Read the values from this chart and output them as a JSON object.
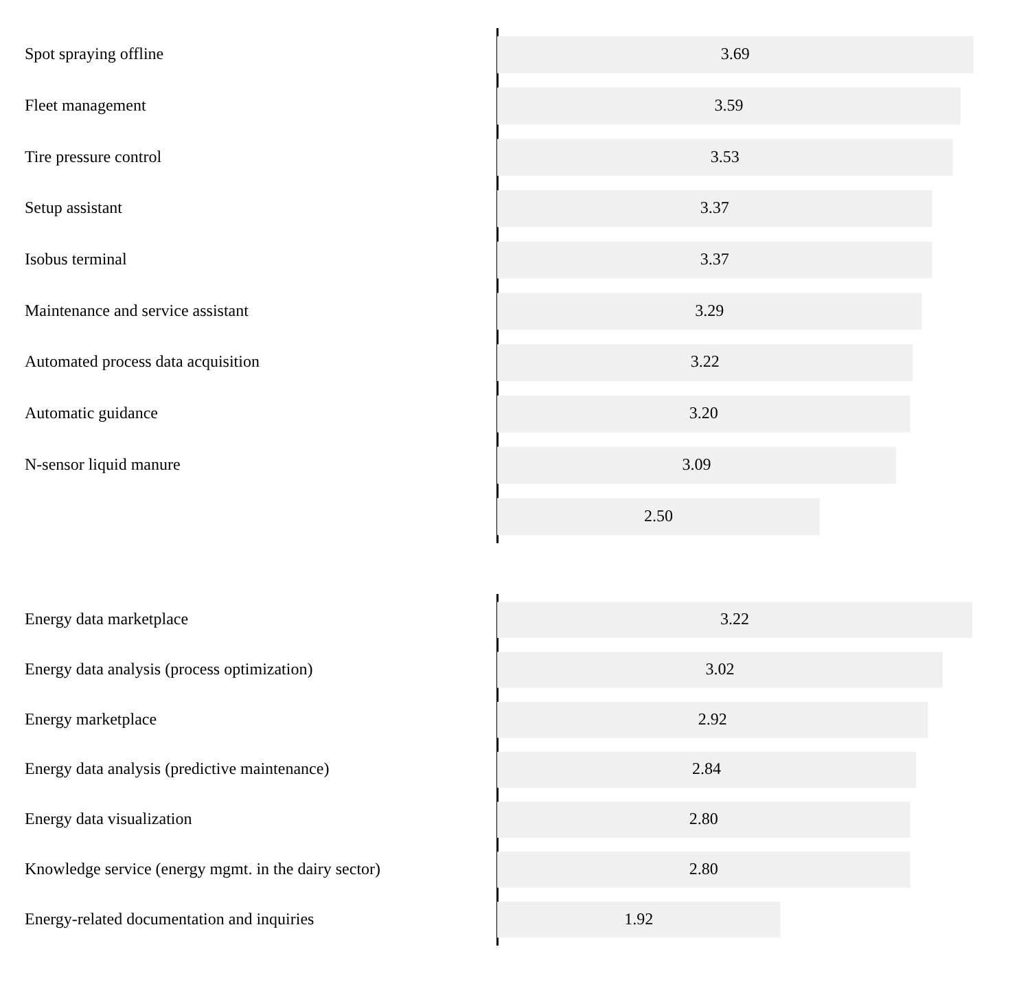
{
  "chart_data": [
    {
      "type": "bar",
      "orientation": "horizontal",
      "categories": [
        "Spot spraying offline",
        "Fleet management",
        "Tire pressure control",
        "Setup assistant",
        "Isobus terminal",
        "Maintenance and service assistant",
        "Automated process data acquisition",
        "Automatic guidance",
        "N-sensor liquid manure",
        null
      ],
      "values": [
        3.69,
        3.59,
        3.53,
        3.37,
        3.37,
        3.29,
        3.22,
        3.2,
        3.09,
        2.5
      ],
      "value_labels": [
        "3.69",
        "3.59",
        "3.53",
        "3.37",
        "3.37",
        "3.29",
        "3.22",
        "3.20",
        "3.09",
        "2.50"
      ],
      "color": "#f0f0f0",
      "tick_labels": "y"
    },
    {
      "type": "bar",
      "orientation": "horizontal",
      "categories": [
        "Energy data marketplace",
        "Energy data analysis (process optimization)",
        "Energy marketplace",
        "Energy data analysis (predictive maintenance)",
        "Energy data visualization",
        "Knowledge service (energy mgmt. in the dairy sector)",
        "Energy-related documentation and inquiries"
      ],
      "values": [
        3.22,
        3.02,
        2.92,
        2.84,
        2.8,
        2.8,
        1.92
      ],
      "value_labels": [
        "3.22",
        "3.02",
        "2.92",
        "2.84",
        "2.80",
        "2.80",
        "1.92"
      ],
      "color": "#f0f0f0",
      "tick_labels": "y"
    }
  ]
}
